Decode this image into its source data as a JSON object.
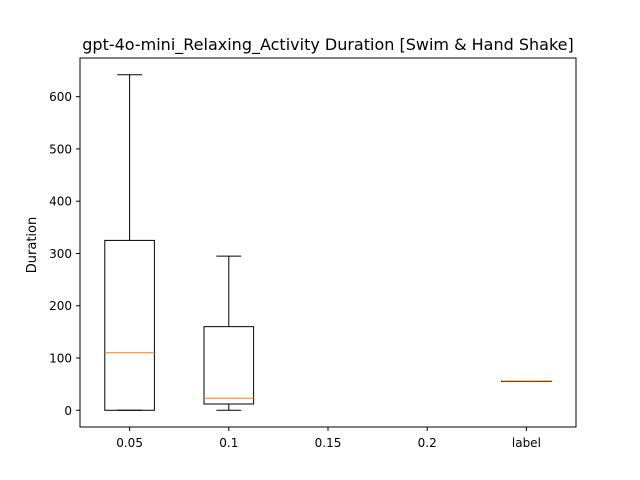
{
  "chart_data": {
    "type": "box",
    "title": "gpt-4o-mini_Relaxing_Activity Duration [Swim & Hand Shake]",
    "xlabel": "",
    "ylabel": "Duration",
    "categories": [
      "0.05",
      "0.1",
      "0.15",
      "0.2",
      "label"
    ],
    "yticks": [
      0,
      100,
      200,
      300,
      400,
      500,
      600
    ],
    "ylim": [
      -32,
      674
    ],
    "grid": false,
    "boxes": [
      {
        "category": "0.05",
        "whisker_low": 0,
        "q1": 0,
        "median": 110,
        "q3": 325,
        "whisker_high": 642
      },
      {
        "category": "0.1",
        "whisker_low": 0,
        "q1": 12,
        "median": 23,
        "q3": 160,
        "whisker_high": 295
      },
      {
        "category": "0.15",
        "empty": true
      },
      {
        "category": "0.2",
        "empty": true
      },
      {
        "category": "label",
        "whisker_low": 56,
        "q1": 56,
        "median": 56,
        "q3": 56,
        "whisker_high": 56
      }
    ],
    "colors": {
      "box": "#000000",
      "median": "#ff7f0e"
    }
  }
}
